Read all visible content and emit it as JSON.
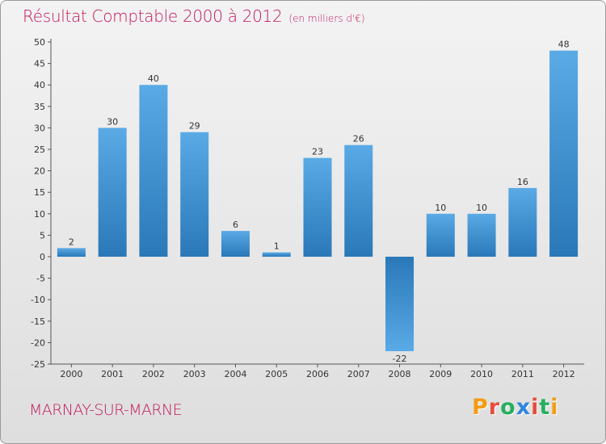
{
  "header": {
    "title": "Résultat Comptable 2000 à 2012",
    "unit": "(en milliers d'€)"
  },
  "footer": {
    "town": "MARNAY-SUR-MARNE",
    "brand_letters": [
      "P",
      "r",
      "o",
      "x",
      "i",
      "t",
      "i"
    ]
  },
  "colors": {
    "title": "#c2185b",
    "bar_light": "#5aaae6",
    "bar_dark": "#2a78b8",
    "brand": [
      "#f39c12",
      "#e74c3c",
      "#27ae60",
      "#2e86de",
      "#e74c3c",
      "#27ae60",
      "#f39c12"
    ]
  },
  "chart_data": {
    "type": "bar",
    "title": "Résultat Comptable 2000 à 2012",
    "ylabel": "en milliers d'€",
    "xlabel": "",
    "categories": [
      "2000",
      "2001",
      "2002",
      "2003",
      "2004",
      "2005",
      "2006",
      "2007",
      "2008",
      "2009",
      "2010",
      "2011",
      "2012"
    ],
    "values": [
      2,
      30,
      40,
      29,
      6,
      1,
      23,
      26,
      -22,
      10,
      10,
      16,
      48
    ],
    "ylim": [
      -25,
      50
    ],
    "yticks": [
      50,
      45,
      40,
      35,
      30,
      25,
      20,
      15,
      10,
      5,
      0,
      -5,
      -10,
      -15,
      -20,
      -25
    ],
    "grid": false
  }
}
